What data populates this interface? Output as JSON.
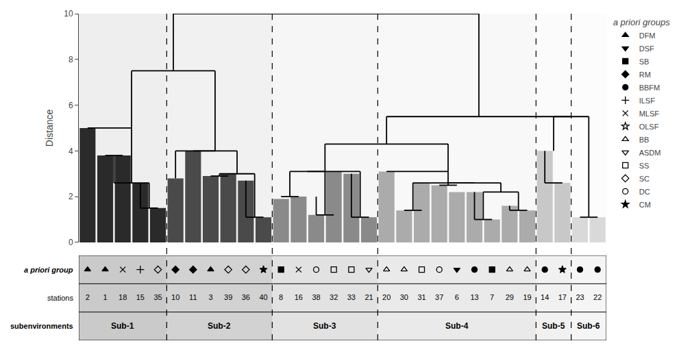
{
  "chart_data": {
    "type": "bar",
    "ylabel": "Distance",
    "ylim": [
      0,
      10
    ],
    "yticks": [
      0,
      2,
      4,
      6,
      8,
      10
    ],
    "grid": false,
    "legend": "right",
    "legend_title": "a priori groups",
    "categories": [
      "2",
      "1",
      "18",
      "15",
      "35",
      "10",
      "11",
      "3",
      "39",
      "36",
      "40",
      "8",
      "16",
      "38",
      "32",
      "33",
      "21",
      "20",
      "30",
      "31",
      "37",
      "6",
      "13",
      "7",
      "29",
      "19",
      "14",
      "17",
      "23",
      "22"
    ],
    "values": [
      5.0,
      3.8,
      3.8,
      2.6,
      1.5,
      2.8,
      4.0,
      2.9,
      3.0,
      2.7,
      1.1,
      1.9,
      2.0,
      1.2,
      3.1,
      3.0,
      1.1,
      3.1,
      1.4,
      2.6,
      2.5,
      2.2,
      2.2,
      1.0,
      1.6,
      1.4,
      4.0,
      2.6,
      1.1,
      1.1
    ],
    "colors": [
      "#2a2a2a",
      "#2a2a2a",
      "#2a2a2a",
      "#2a2a2a",
      "#2a2a2a",
      "#4a4a4a",
      "#4a4a4a",
      "#4a4a4a",
      "#4a4a4a",
      "#4a4a4a",
      "#4a4a4a",
      "#8a8a8a",
      "#8a8a8a",
      "#8a8a8a",
      "#8a8a8a",
      "#8a8a8a",
      "#8a8a8a",
      "#ababab",
      "#ababab",
      "#ababab",
      "#ababab",
      "#ababab",
      "#ababab",
      "#ababab",
      "#ababab",
      "#ababab",
      "#c8c8c8",
      "#c8c8c8",
      "#d9d9d9",
      "#d9d9d9"
    ],
    "subenvironments": [
      "Sub-1",
      "Sub-1",
      "Sub-1",
      "Sub-1",
      "Sub-1",
      "Sub-2",
      "Sub-2",
      "Sub-2",
      "Sub-2",
      "Sub-2",
      "Sub-2",
      "Sub-3",
      "Sub-3",
      "Sub-3",
      "Sub-3",
      "Sub-3",
      "Sub-3",
      "Sub-4",
      "Sub-4",
      "Sub-4",
      "Sub-4",
      "Sub-4",
      "Sub-4",
      "Sub-4",
      "Sub-4",
      "Sub-4",
      "Sub-5",
      "Sub-5",
      "Sub-6",
      "Sub-6"
    ],
    "apriori": [
      "DFM",
      "DFM",
      "MLSF",
      "ILSF",
      "SC",
      "RM",
      "RM",
      "DFM",
      "SC",
      "SC",
      "CM",
      "SB",
      "MLSF",
      "DC",
      "SS",
      "SS",
      "ASDM",
      "BB",
      "BB",
      "SS",
      "DC",
      "DSF",
      "BBFM",
      "SB",
      "BB",
      "BB",
      "BBFM",
      "CM",
      "BBFM",
      "BBFM"
    ],
    "apriori_groups": [
      {
        "name": "DFM",
        "marker": "triangle-up",
        "filled": true
      },
      {
        "name": "DSF",
        "marker": "triangle-down",
        "filled": true
      },
      {
        "name": "SB",
        "marker": "square",
        "filled": true
      },
      {
        "name": "RM",
        "marker": "diamond",
        "filled": true
      },
      {
        "name": "BBFM",
        "marker": "circle",
        "filled": true
      },
      {
        "name": "ILSF",
        "marker": "cross",
        "filled": false
      },
      {
        "name": "MLSF",
        "marker": "x",
        "filled": false
      },
      {
        "name": "OLSF",
        "marker": "star",
        "filled": false
      },
      {
        "name": "BB",
        "marker": "triangle-up",
        "filled": false
      },
      {
        "name": "ASDM",
        "marker": "triangle-down",
        "filled": false
      },
      {
        "name": "SS",
        "marker": "square",
        "filled": false
      },
      {
        "name": "SC",
        "marker": "diamond",
        "filled": false
      },
      {
        "name": "DC",
        "marker": "circle",
        "filled": false
      },
      {
        "name": "CM",
        "marker": "star",
        "filled": true
      }
    ],
    "row_labels": [
      "a priori group",
      "stations",
      "subenvironments"
    ],
    "links": [
      [
        3,
        1.5,
        4,
        1.5
      ],
      [
        3,
        1.5,
        3,
        2.6
      ],
      [
        1,
        3.8,
        2,
        3.8
      ],
      [
        1.5,
        2.6,
        3.5,
        2.6
      ],
      [
        1.5,
        2.6,
        1.5,
        3.8
      ],
      [
        3.5,
        1.5,
        3.5,
        2.6
      ],
      [
        0,
        5.0,
        2.5,
        5.0
      ],
      [
        2.5,
        2.6,
        2.5,
        5.0
      ],
      [
        9,
        1.1,
        10,
        1.1
      ],
      [
        9,
        1.1,
        9,
        2.7
      ],
      [
        7,
        2.9,
        8,
        2.9
      ],
      [
        7.5,
        3.0,
        9.5,
        3.0
      ],
      [
        7.5,
        2.9,
        7.5,
        3.0
      ],
      [
        9.5,
        1.1,
        9.5,
        3.0
      ],
      [
        6,
        4.0,
        8.5,
        4.0
      ],
      [
        8.5,
        3.0,
        8.5,
        4.0
      ],
      [
        5,
        4.0,
        7.25,
        4.0
      ],
      [
        5,
        2.8,
        5,
        4.0
      ],
      [
        2.5,
        7.5,
        7.25,
        7.5
      ],
      [
        2.5,
        5.0,
        2.5,
        7.5
      ],
      [
        7.25,
        4.0,
        7.25,
        7.5
      ],
      [
        11,
        2.0,
        12,
        2.0
      ],
      [
        13,
        1.2,
        14,
        1.2
      ],
      [
        13,
        1.2,
        13,
        2.0
      ],
      [
        11.5,
        3.1,
        13.5,
        3.1
      ],
      [
        11.5,
        2.0,
        11.5,
        3.1
      ],
      [
        13.5,
        1.2,
        13.5,
        3.1
      ],
      [
        15,
        1.1,
        16,
        1.1
      ],
      [
        15,
        1.1,
        15,
        3.0
      ],
      [
        12.5,
        3.1,
        15.5,
        3.1
      ],
      [
        15.5,
        1.1,
        15.5,
        3.1
      ],
      [
        24,
        1.4,
        25,
        1.4
      ],
      [
        24,
        1.4,
        24,
        1.6
      ],
      [
        22,
        1.0,
        23,
        1.0
      ],
      [
        22,
        1.0,
        22,
        2.2
      ],
      [
        22.5,
        2.2,
        24.5,
        2.2
      ],
      [
        22.5,
        1.0,
        22.5,
        2.2
      ],
      [
        24.5,
        1.4,
        24.5,
        2.2
      ],
      [
        20,
        2.5,
        21,
        2.5
      ],
      [
        20.5,
        2.6,
        23.5,
        2.6
      ],
      [
        20.5,
        2.5,
        20.5,
        2.6
      ],
      [
        23.5,
        2.2,
        23.5,
        2.6
      ],
      [
        18,
        1.4,
        19,
        1.4
      ],
      [
        18.5,
        2.6,
        22.0,
        2.6
      ],
      [
        18.5,
        1.4,
        18.5,
        2.6
      ],
      [
        17,
        3.1,
        20.5,
        3.1
      ],
      [
        20.5,
        2.6,
        20.5,
        3.1
      ],
      [
        13.5,
        4.3,
        20.5,
        4.3
      ],
      [
        13.5,
        3.1,
        13.5,
        4.3
      ],
      [
        20.5,
        3.1,
        20.5,
        4.3
      ],
      [
        26,
        2.6,
        27,
        2.6
      ],
      [
        26,
        2.6,
        26,
        4.0
      ],
      [
        28,
        1.1,
        29,
        1.1
      ],
      [
        26.5,
        5.5,
        28.5,
        5.5
      ],
      [
        26.5,
        4.0,
        26.5,
        5.5
      ],
      [
        28.5,
        1.1,
        28.5,
        5.5
      ],
      [
        17.0,
        5.5,
        27.5,
        5.5
      ],
      [
        17.0,
        4.3,
        17.0,
        5.5
      ],
      [
        4.875,
        10.0,
        22.25,
        10.0
      ],
      [
        4.875,
        7.5,
        4.875,
        10.0
      ],
      [
        22.25,
        5.5,
        22.25,
        10.0
      ]
    ]
  }
}
